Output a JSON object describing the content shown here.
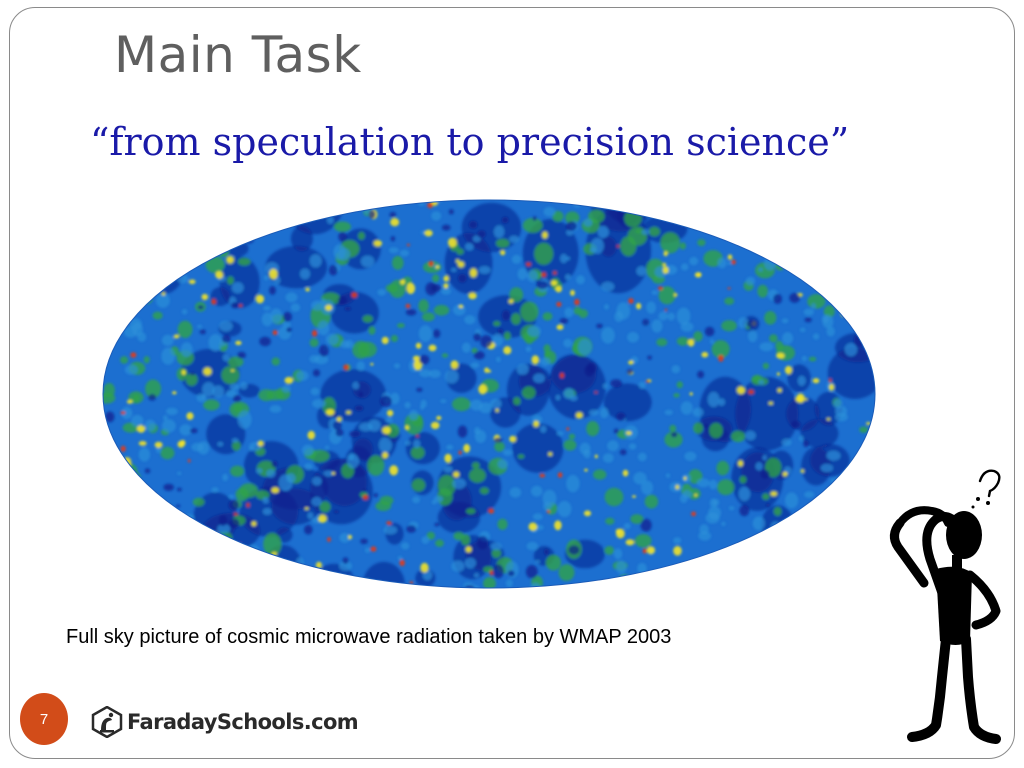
{
  "slide": {
    "title": "Main Task",
    "subtitle": "“from speculation to precision science”",
    "caption": "Full sky picture of cosmic microwave radiation taken by WMAP 2003",
    "page_number": "7"
  },
  "logo": {
    "text": "FaradaySchools.com",
    "icon": "faraday-schools-logo-icon"
  },
  "images": {
    "sky_map": "cmb-full-sky-map",
    "figure": "thinking-stick-figure"
  },
  "colors": {
    "title": "#5f5f5f",
    "subtitle": "#1a1aa8",
    "badge": "#d24c19",
    "map_deep": "#0a1f8c",
    "map_mid": "#1c6fd0",
    "map_green": "#2fa24a",
    "map_yellow": "#f2e32a",
    "map_red": "#e23a1a"
  }
}
